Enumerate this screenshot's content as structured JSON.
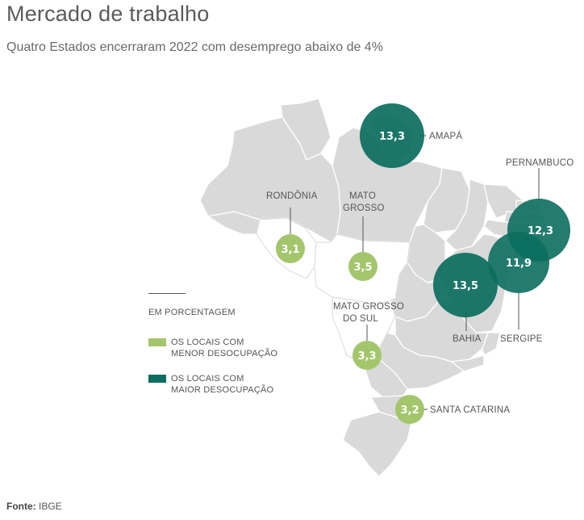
{
  "header": {
    "title": "Mercado de trabalho",
    "subtitle": "Quatro Estados encerraram 2022 com desemprego abaixo de 4%"
  },
  "legend": {
    "heading": "EM PORCENTAGEM",
    "low": {
      "line1": "OS LOCAIS COM",
      "line2": "MENOR DESOCUPAÇÃO",
      "color": "#a3c66c"
    },
    "high": {
      "line1": "OS LOCAIS COM",
      "line2": "MAIOR DESOCUPAÇÃO",
      "color": "#0b6e5e"
    }
  },
  "map_data": {
    "unit": "%",
    "states": [
      {
        "name": "AMAPÁ",
        "value": "13,3",
        "group": "high"
      },
      {
        "name": "PERNAMBUCO",
        "value": "12,3",
        "group": "high"
      },
      {
        "name": "SERGIPE",
        "value": "11,9",
        "group": "high"
      },
      {
        "name": "BAHIA",
        "value": "13,5",
        "group": "high"
      },
      {
        "name": "RONDÔNIA",
        "value": "3,1",
        "group": "low"
      },
      {
        "name_line1": "MATO",
        "name_line2": "GROSSO",
        "value": "3,5",
        "group": "low"
      },
      {
        "name_line1": "MATO GROSSO",
        "name_line2": "DO SUL",
        "value": "3,3",
        "group": "low"
      },
      {
        "name": "SANTA CATARINA",
        "value": "3,2",
        "group": "low"
      }
    ]
  },
  "footer": {
    "source_label": "Fonte:",
    "source_value": "IBGE"
  }
}
